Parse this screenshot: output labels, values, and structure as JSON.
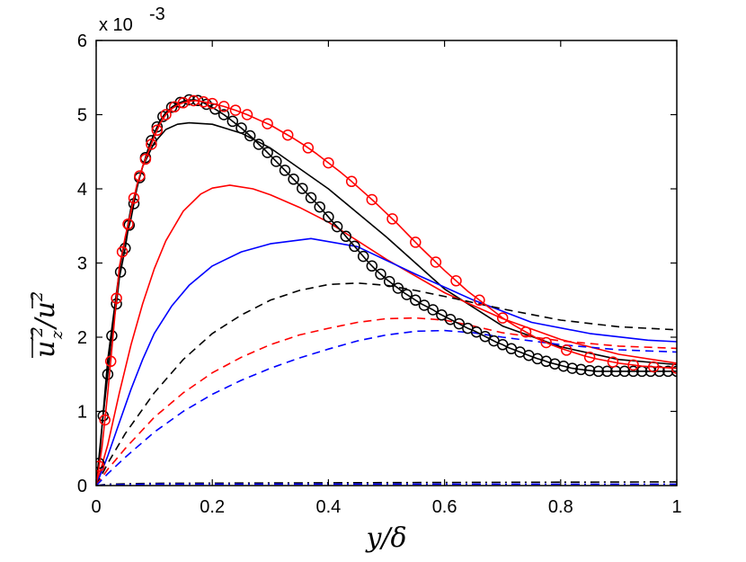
{
  "chart_data": {
    "type": "line",
    "title": "",
    "xlabel": "y/δ",
    "ylabel": "u_z'^2/u^2",
    "ylabel_parts": {
      "main": "u",
      "sub": "z",
      "sup": "′2",
      "slash": "/",
      "den": "u",
      "densup": "2"
    },
    "multiplier": "x 10",
    "multiplier_exp": "-3",
    "xlim": [
      0,
      1
    ],
    "ylim": [
      0,
      6
    ],
    "xticks": [
      0,
      0.2,
      0.4,
      0.6,
      0.8,
      1
    ],
    "xtick_labels": [
      "0",
      "0.2",
      "0.4",
      "0.6",
      "0.8",
      "1"
    ],
    "yticks": [
      0,
      1,
      2,
      3,
      4,
      5,
      6
    ],
    "ytick_labels": [
      "0",
      "1",
      "2",
      "3",
      "4",
      "5",
      "6"
    ],
    "grid": false,
    "series": [
      {
        "name": "black-solid",
        "color": "#000000",
        "dash": "solid",
        "x": [
          0,
          0.01,
          0.02,
          0.04,
          0.06,
          0.08,
          0.1,
          0.12,
          0.14,
          0.16,
          0.2,
          0.25,
          0.3,
          0.4,
          0.5,
          0.6,
          0.7,
          0.8,
          0.9,
          1.0
        ],
        "y": [
          0,
          0.8,
          1.7,
          2.9,
          3.75,
          4.3,
          4.62,
          4.8,
          4.87,
          4.89,
          4.87,
          4.75,
          4.55,
          4.0,
          3.35,
          2.65,
          2.15,
          1.87,
          1.7,
          1.63
        ]
      },
      {
        "name": "red-solid",
        "color": "#ff0000",
        "dash": "solid",
        "x": [
          0,
          0.02,
          0.04,
          0.06,
          0.08,
          0.1,
          0.12,
          0.15,
          0.18,
          0.2,
          0.23,
          0.27,
          0.3,
          0.35,
          0.4,
          0.5,
          0.6,
          0.7,
          0.8,
          0.9,
          1.0
        ],
        "y": [
          0,
          0.55,
          1.25,
          1.9,
          2.45,
          2.92,
          3.3,
          3.7,
          3.93,
          4.01,
          4.05,
          4.0,
          3.92,
          3.75,
          3.55,
          3.05,
          2.6,
          2.25,
          1.97,
          1.77,
          1.65
        ]
      },
      {
        "name": "blue-solid",
        "color": "#0000ff",
        "dash": "solid",
        "x": [
          0,
          0.02,
          0.04,
          0.06,
          0.08,
          0.1,
          0.13,
          0.16,
          0.2,
          0.25,
          0.3,
          0.37,
          0.45,
          0.55,
          0.65,
          0.75,
          0.85,
          0.95,
          1.0
        ],
        "y": [
          0,
          0.4,
          0.85,
          1.3,
          1.7,
          2.05,
          2.42,
          2.7,
          2.96,
          3.15,
          3.26,
          3.33,
          3.22,
          2.85,
          2.5,
          2.2,
          2.05,
          1.96,
          1.94
        ]
      },
      {
        "name": "black-dashed",
        "color": "#000000",
        "dash": "dashed",
        "x": [
          0,
          0.02,
          0.05,
          0.1,
          0.15,
          0.2,
          0.25,
          0.3,
          0.35,
          0.4,
          0.45,
          0.5,
          0.55,
          0.6,
          0.7,
          0.8,
          0.9,
          1.0
        ],
        "y": [
          0,
          0.3,
          0.7,
          1.25,
          1.7,
          2.05,
          2.3,
          2.5,
          2.63,
          2.71,
          2.73,
          2.7,
          2.63,
          2.55,
          2.38,
          2.23,
          2.14,
          2.1
        ]
      },
      {
        "name": "red-dashed",
        "color": "#ff0000",
        "dash": "dashed",
        "x": [
          0,
          0.02,
          0.05,
          0.1,
          0.15,
          0.2,
          0.25,
          0.3,
          0.35,
          0.4,
          0.45,
          0.5,
          0.55,
          0.6,
          0.65,
          0.7,
          0.8,
          0.9,
          1.0
        ],
        "y": [
          0,
          0.22,
          0.5,
          0.92,
          1.25,
          1.52,
          1.73,
          1.9,
          2.03,
          2.12,
          2.2,
          2.25,
          2.26,
          2.23,
          2.15,
          2.06,
          1.95,
          1.88,
          1.85
        ]
      },
      {
        "name": "blue-dashed",
        "color": "#0000ff",
        "dash": "dashed",
        "x": [
          0,
          0.02,
          0.05,
          0.1,
          0.15,
          0.2,
          0.25,
          0.3,
          0.35,
          0.4,
          0.45,
          0.5,
          0.55,
          0.6,
          0.65,
          0.7,
          0.8,
          0.9,
          1.0
        ],
        "y": [
          0,
          0.16,
          0.38,
          0.72,
          1.0,
          1.23,
          1.42,
          1.58,
          1.72,
          1.84,
          1.95,
          2.03,
          2.08,
          2.09,
          2.06,
          2.0,
          1.9,
          1.83,
          1.8
        ]
      },
      {
        "name": "black-dashdot",
        "color": "#000000",
        "dash": "dashdot",
        "x": [
          0,
          0.02,
          0.1,
          0.5,
          1.0
        ],
        "y": [
          0,
          0.02,
          0.03,
          0.04,
          0.05
        ]
      },
      {
        "name": "blue-dashdot",
        "color": "#0000ff",
        "dash": "dashdot",
        "x": [
          0,
          0.02,
          0.1,
          0.5,
          1.0
        ],
        "y": [
          0,
          0.01,
          0.02,
          0.02,
          0.02
        ]
      },
      {
        "name": "black-circles",
        "color": "#000000",
        "dash": "solid",
        "marker": "circle",
        "x": [
          0,
          0.005,
          0.01,
          0.015,
          0.02,
          0.025,
          0.03,
          0.035,
          0.04,
          0.045,
          0.05,
          0.055,
          0.06,
          0.065,
          0.07,
          0.075,
          0.08,
          0.085,
          0.09,
          0.1,
          0.11,
          0.12,
          0.13,
          0.14,
          0.15,
          0.16,
          0.17,
          0.18,
          0.19,
          0.2,
          0.21,
          0.22,
          0.23,
          0.24,
          0.25,
          0.26,
          0.27,
          0.28,
          0.29,
          0.3,
          0.31,
          0.32,
          0.33,
          0.34,
          0.35,
          0.36,
          0.37,
          0.38,
          0.39,
          0.4,
          0.41,
          0.42,
          0.43,
          0.44,
          0.45,
          0.46,
          0.47,
          0.48,
          0.49,
          0.5,
          0.51,
          0.52,
          0.53,
          0.54,
          0.55,
          0.56,
          0.57,
          0.58,
          0.59,
          0.6,
          0.61,
          0.62,
          0.63,
          0.64,
          0.65,
          0.66,
          0.67,
          0.68,
          0.69,
          0.7,
          0.71,
          0.72,
          0.73,
          0.74,
          0.75,
          0.76,
          0.77,
          0.78,
          0.79,
          0.8,
          0.81,
          0.82,
          0.83,
          0.84,
          0.85,
          0.86,
          0.87,
          0.88,
          0.89,
          0.9,
          0.91,
          0.92,
          0.93,
          0.94,
          0.95,
          0.96,
          0.97,
          0.98,
          0.99,
          1.0
        ],
        "y": [
          0,
          0.3,
          0.8,
          1.15,
          1.5,
          1.9,
          2.2,
          2.45,
          2.8,
          3.0,
          3.2,
          3.45,
          3.6,
          3.8,
          4.0,
          4.15,
          4.3,
          4.42,
          4.55,
          4.75,
          4.92,
          5.03,
          5.1,
          5.15,
          5.18,
          5.2,
          5.2,
          5.18,
          5.14,
          5.1,
          5.05,
          5.0,
          4.94,
          4.88,
          4.82,
          4.75,
          4.68,
          4.6,
          4.53,
          4.45,
          4.37,
          4.29,
          4.21,
          4.13,
          4.05,
          3.96,
          3.88,
          3.8,
          3.71,
          3.62,
          3.53,
          3.45,
          3.36,
          3.27,
          3.18,
          3.09,
          3.0,
          2.92,
          2.85,
          2.78,
          2.72,
          2.66,
          2.6,
          2.55,
          2.5,
          2.45,
          2.41,
          2.37,
          2.32,
          2.28,
          2.24,
          2.2,
          2.16,
          2.12,
          2.09,
          2.05,
          2.01,
          1.97,
          1.93,
          1.9,
          1.86,
          1.83,
          1.8,
          1.77,
          1.74,
          1.71,
          1.69,
          1.66,
          1.64,
          1.62,
          1.6,
          1.58,
          1.57,
          1.56,
          1.55,
          1.54,
          1.54,
          1.54,
          1.54,
          1.54,
          1.54,
          1.54,
          1.54,
          1.54,
          1.54,
          1.54,
          1.54,
          1.54,
          1.54,
          1.54
        ],
        "marker_x": [
          0.005,
          0.012,
          0.02,
          0.027,
          0.035,
          0.042,
          0.05,
          0.057,
          0.065,
          0.075,
          0.085,
          0.095,
          0.105,
          0.115,
          0.13,
          0.145,
          0.16,
          0.175,
          0.19,
          0.205,
          0.22,
          0.235,
          0.25,
          0.265,
          0.28,
          0.295,
          0.31,
          0.325,
          0.34,
          0.355,
          0.37,
          0.385,
          0.4,
          0.415,
          0.43,
          0.445,
          0.46,
          0.475,
          0.49,
          0.505,
          0.52,
          0.535,
          0.55,
          0.565,
          0.58,
          0.595,
          0.61,
          0.625,
          0.64,
          0.655,
          0.67,
          0.685,
          0.7,
          0.715,
          0.73,
          0.745,
          0.76,
          0.775,
          0.79,
          0.805,
          0.82,
          0.835,
          0.85,
          0.865,
          0.88,
          0.895,
          0.91,
          0.925,
          0.94,
          0.955,
          0.97,
          0.985,
          1.0
        ]
      },
      {
        "name": "red-circles",
        "color": "#ff0000",
        "dash": "solid",
        "marker": "circle",
        "x": [
          0,
          0.01,
          0.02,
          0.03,
          0.04,
          0.05,
          0.06,
          0.07,
          0.08,
          0.09,
          0.1,
          0.11,
          0.12,
          0.13,
          0.14,
          0.15,
          0.16,
          0.17,
          0.18,
          0.2,
          0.22,
          0.24,
          0.26,
          0.28,
          0.3,
          0.32,
          0.34,
          0.36,
          0.38,
          0.4,
          0.42,
          0.44,
          0.46,
          0.48,
          0.5,
          0.52,
          0.54,
          0.56,
          0.58,
          0.6,
          0.62,
          0.64,
          0.66,
          0.68,
          0.7,
          0.72,
          0.74,
          0.76,
          0.78,
          0.8,
          0.82,
          0.84,
          0.86,
          0.88,
          0.9,
          0.92,
          0.94,
          0.96,
          0.98,
          1.0
        ],
        "y": [
          0,
          0.52,
          1.25,
          2.1,
          2.95,
          3.35,
          3.7,
          4.05,
          4.3,
          4.5,
          4.7,
          4.88,
          5.0,
          5.08,
          5.13,
          5.16,
          5.18,
          5.19,
          5.18,
          5.15,
          5.11,
          5.06,
          5.0,
          4.93,
          4.86,
          4.77,
          4.68,
          4.58,
          4.47,
          4.35,
          4.23,
          4.1,
          3.96,
          3.82,
          3.67,
          3.52,
          3.36,
          3.2,
          3.05,
          2.9,
          2.76,
          2.62,
          2.5,
          2.38,
          2.26,
          2.16,
          2.07,
          1.98,
          1.91,
          1.85,
          1.8,
          1.75,
          1.71,
          1.68,
          1.65,
          1.63,
          1.61,
          1.6,
          1.59,
          1.58
        ],
        "marker_x": [
          0.005,
          0.015,
          0.025,
          0.035,
          0.045,
          0.055,
          0.065,
          0.075,
          0.085,
          0.095,
          0.105,
          0.12,
          0.135,
          0.15,
          0.168,
          0.185,
          0.2,
          0.22,
          0.24,
          0.26,
          0.295,
          0.33,
          0.365,
          0.4,
          0.44,
          0.475,
          0.51,
          0.55,
          0.585,
          0.62,
          0.66,
          0.7,
          0.74,
          0.775,
          0.81,
          0.85,
          0.89,
          0.925,
          0.96,
          1.0
        ]
      }
    ]
  }
}
